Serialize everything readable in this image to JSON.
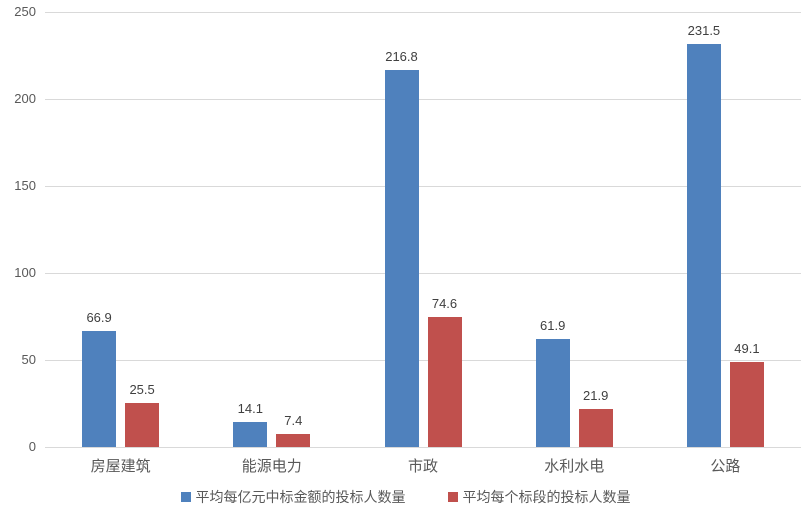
{
  "chart_data": {
    "type": "bar",
    "title": "",
    "xlabel": "",
    "ylabel": "",
    "categories": [
      "房屋建筑",
      "能源电力",
      "市政",
      "水利水电",
      "公路"
    ],
    "series": [
      {
        "name": "平均每亿元中标金额的投标人数量",
        "color": "#4f81bd",
        "values": [
          66.9,
          14.1,
          216.8,
          61.9,
          231.5
        ]
      },
      {
        "name": "平均每个标段的投标人数量",
        "color": "#c0504d",
        "values": [
          25.5,
          7.4,
          74.6,
          21.9,
          49.1
        ]
      }
    ],
    "ylim": [
      0,
      250
    ],
    "yticks": [
      0,
      50,
      100,
      150,
      200,
      250
    ],
    "grid": true,
    "legend_position": "bottom"
  },
  "colors": {
    "background": "#ffffff",
    "gridline": "#d9d9d9",
    "axis_label": "#595959",
    "value_label": "#404040"
  }
}
